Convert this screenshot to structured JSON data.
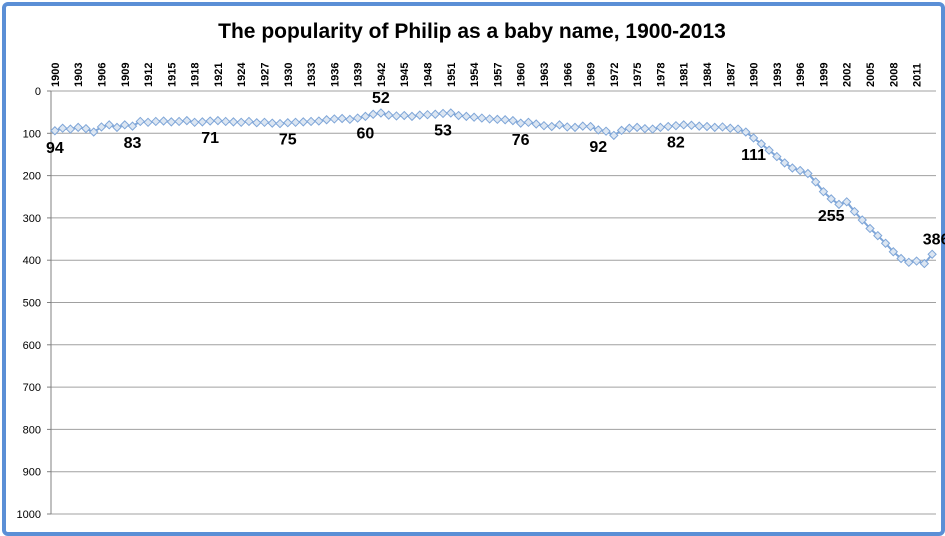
{
  "chart_data": {
    "type": "line",
    "title": "The popularity of Philip as a baby name, 1900-2013",
    "categories": [
      "1900",
      null,
      null,
      "1903",
      null,
      null,
      "1906",
      null,
      null,
      "1909",
      null,
      null,
      "1912",
      null,
      null,
      "1915",
      null,
      null,
      "1918",
      null,
      null,
      "1921",
      null,
      null,
      "1924",
      null,
      null,
      "1927",
      null,
      null,
      "1930",
      null,
      null,
      "1933",
      null,
      null,
      "1936",
      null,
      null,
      "1939",
      null,
      null,
      "1942",
      null,
      null,
      "1945",
      null,
      null,
      "1948",
      null,
      null,
      "1951",
      null,
      null,
      "1954",
      null,
      null,
      "1957",
      null,
      null,
      "1960",
      null,
      null,
      "1963",
      null,
      null,
      "1966",
      null,
      null,
      "1969",
      null,
      null,
      "1972",
      null,
      null,
      "1975",
      null,
      null,
      "1978",
      null,
      null,
      "1981",
      null,
      null,
      "1984",
      null,
      null,
      "1987",
      null,
      null,
      "1990",
      null,
      null,
      "1993",
      null,
      null,
      "1996",
      null,
      null,
      "1999",
      null,
      null,
      "2002",
      null,
      null,
      "2005",
      null,
      null,
      "2008",
      null,
      null,
      "2011",
      null,
      null
    ],
    "series": [
      {
        "name": "Philip",
        "color": "#7fa6d8",
        "values": [
          94,
          88,
          90,
          86,
          89,
          97,
          85,
          80,
          86,
          80,
          83,
          72,
          74,
          72,
          71,
          73,
          72,
          70,
          74,
          73,
          71,
          70,
          72,
          73,
          74,
          72,
          75,
          74,
          76,
          77,
          75,
          74,
          73,
          72,
          71,
          68,
          66,
          65,
          67,
          64,
          60,
          55,
          52,
          57,
          59,
          58,
          60,
          57,
          56,
          55,
          53,
          52,
          58,
          60,
          62,
          64,
          66,
          67,
          68,
          70,
          76,
          74,
          78,
          82,
          84,
          80,
          85,
          86,
          83,
          84,
          92,
          95,
          105,
          93,
          88,
          86,
          89,
          90,
          86,
          84,
          82,
          80,
          81,
          83,
          84,
          86,
          85,
          88,
          90,
          97,
          111,
          125,
          140,
          155,
          170,
          182,
          188,
          195,
          215,
          238,
          255,
          268,
          262,
          285,
          305,
          325,
          342,
          360,
          380,
          396,
          405,
          402,
          408,
          386
        ]
      }
    ],
    "labeled_points": [
      0,
      10,
      20,
      30,
      40,
      42,
      50,
      60,
      70,
      80,
      90,
      100,
      113
    ],
    "ylim": [
      0,
      1000
    ],
    "y_reversed": true,
    "yticks": [
      0,
      100,
      200,
      300,
      400,
      500,
      600,
      700,
      800,
      900,
      1000
    ],
    "grid": true
  }
}
